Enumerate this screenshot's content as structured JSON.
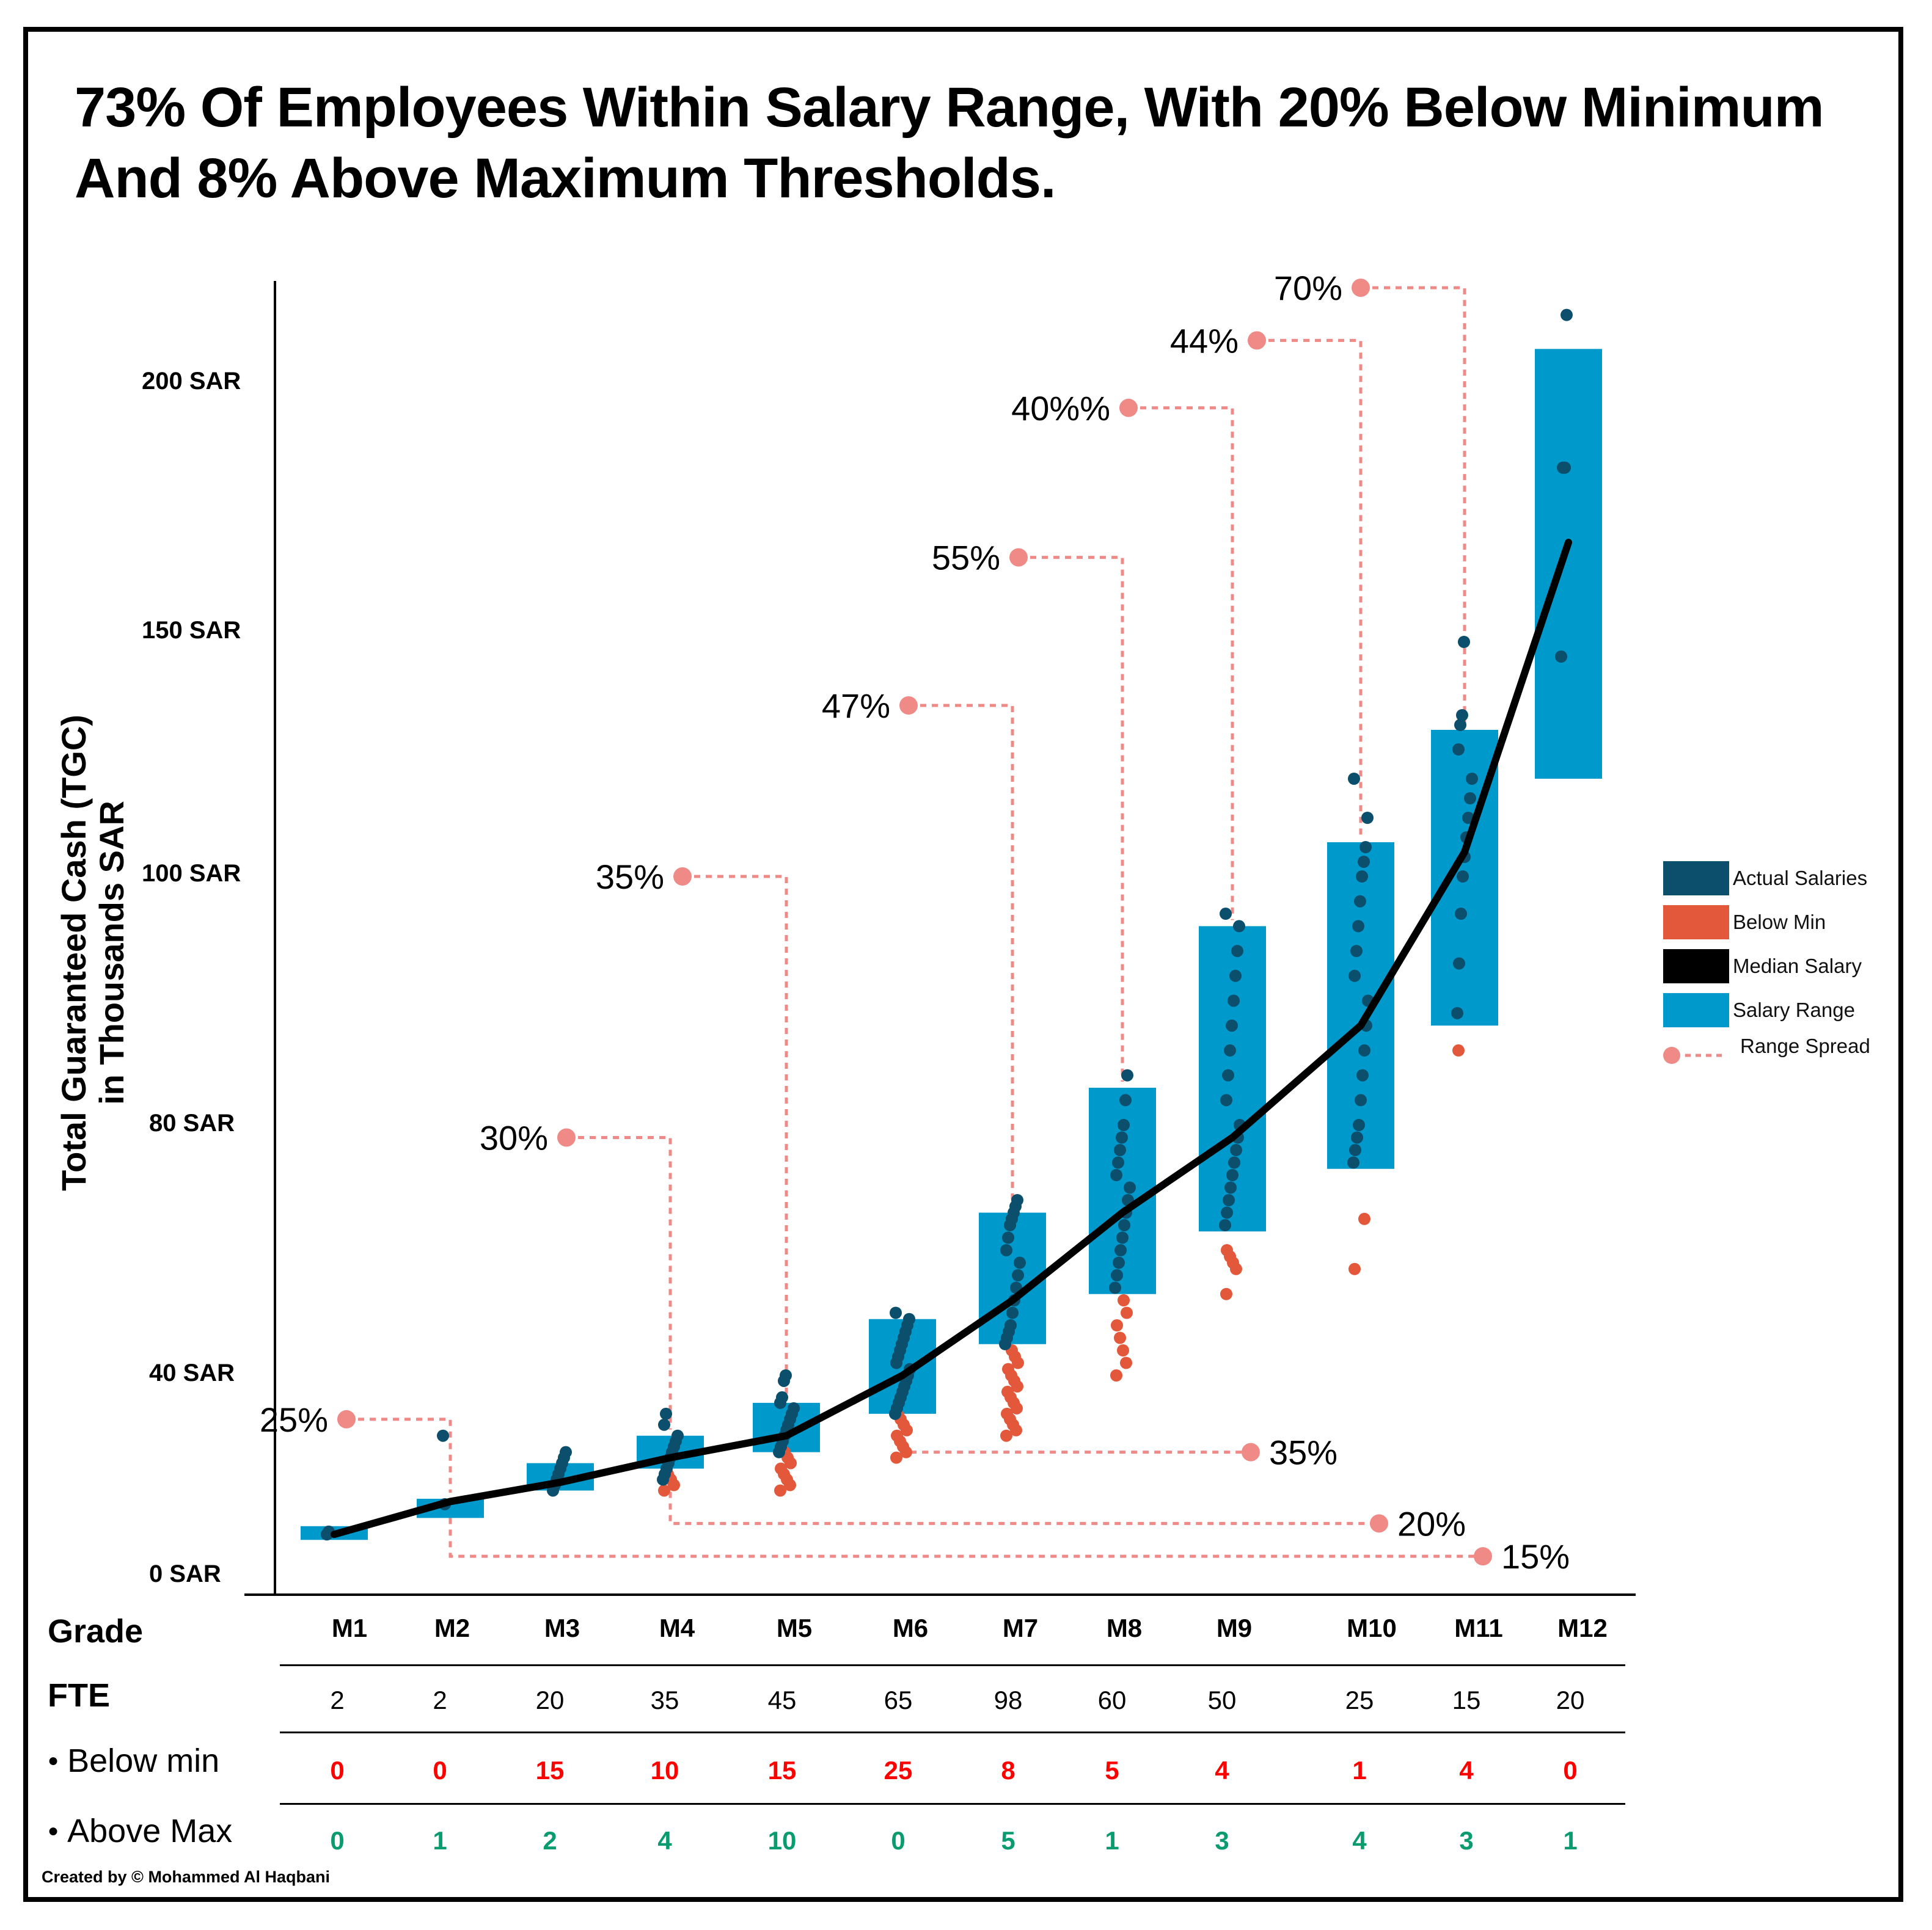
{
  "title": "73% Of Employees Within Salary Range, With 20% Below Minimum And 8% Above Maximum Thresholds.",
  "credit": "Created by © Mohammed Al Haqbani",
  "colors": {
    "actual": "#0b4f6c",
    "below": "#e3573a",
    "median": "#000000",
    "range": "#0099cc",
    "spread": "#f08a87"
  },
  "chart_data": {
    "type": "box-range",
    "title": "73% Of Employees Within Salary Range, With 20% Below Minimum And 8% Above Maximum Thresholds.",
    "ylabel": [
      "Total Guaranteed Cash (TGC)",
      "in Thousands SAR"
    ],
    "y_ticks": [
      {
        "value": 0,
        "label": "0 SAR"
      },
      {
        "value": 40,
        "label": "40 SAR"
      },
      {
        "value": 80,
        "label": "80 SAR"
      },
      {
        "value": 100,
        "label": "100 SAR"
      },
      {
        "value": 150,
        "label": "150 SAR"
      },
      {
        "value": 200,
        "label": "200 SAR"
      }
    ],
    "legend": [
      "Actual Salaries",
      "Below Min",
      "Median Salary",
      "Salary Range",
      "Range Spread"
    ],
    "grades": [
      "M1",
      "M2",
      "M3",
      "M4",
      "M5",
      "M6",
      "M7",
      "M8",
      "M9",
      "M10",
      "M11",
      "M12"
    ],
    "range_min": [
      10,
      14,
      19,
      23,
      26,
      33,
      45,
      53,
      63,
      73,
      88,
      120
    ],
    "range_max": [
      12.5,
      17.5,
      24,
      29,
      35,
      49,
      66,
      83,
      96,
      107,
      130,
      220
    ],
    "median": [
      11,
      17,
      20.5,
      25,
      29,
      40,
      52,
      66,
      78,
      88,
      105,
      168
    ],
    "range_spread": [
      {
        "grade": "M2",
        "label": "25%",
        "value": 32
      },
      {
        "grade": "M4",
        "label": "30%",
        "value": 78
      },
      {
        "grade": "M5",
        "label": "35%",
        "value": 100
      },
      {
        "grade": "M7",
        "label": "47%",
        "value": 135
      },
      {
        "grade": "M8",
        "label": "55%",
        "value": 165
      },
      {
        "grade": "M9",
        "label": "40%%",
        "value": 195
      },
      {
        "grade": "M10",
        "label": "44%",
        "value": 225
      },
      {
        "grade": "M11",
        "label": "70%",
        "value": 256
      },
      {
        "grade": "M6",
        "label": "35%",
        "value": 26,
        "side": "right",
        "end_grade": "M9"
      },
      {
        "grade": "M4",
        "label": "20%",
        "value": 13,
        "side": "right",
        "end_grade": "M10"
      },
      {
        "grade": "M2",
        "label": "15%",
        "value": 7,
        "side": "right",
        "end_grade": "M11"
      }
    ],
    "actual_salaries": [
      [
        11,
        11.5
      ],
      [
        29,
        16.5
      ],
      [
        19,
        20,
        21,
        22,
        23,
        24,
        25,
        26
      ],
      [
        21,
        22,
        23,
        24,
        25,
        26,
        27,
        28,
        29,
        31,
        33
      ],
      [
        26,
        27,
        28,
        29,
        30,
        31,
        32,
        33,
        34,
        35,
        36,
        39,
        40
      ],
      [
        33,
        34,
        35,
        36,
        37,
        38,
        39,
        40,
        41,
        42,
        43,
        44,
        45,
        46,
        47,
        48,
        49,
        50
      ],
      [
        45,
        46,
        47,
        48,
        50,
        52,
        54,
        56,
        58,
        60,
        62,
        64,
        65,
        66,
        67,
        68
      ],
      [
        54,
        56,
        58,
        60,
        62,
        64,
        66,
        68,
        70,
        72,
        74,
        76,
        78,
        80,
        82,
        84
      ],
      [
        64,
        66,
        68,
        70,
        72,
        74,
        76,
        78,
        80,
        82,
        84,
        86,
        88,
        90,
        92,
        94,
        96,
        97
      ],
      [
        74,
        76,
        78,
        80,
        82,
        84,
        86,
        88,
        90,
        92,
        94,
        96,
        98,
        100,
        103,
        106,
        112,
        120
      ],
      [
        89,
        93,
        97,
        100,
        104,
        108,
        112,
        116,
        120,
        126,
        131,
        133,
        148
      ],
      [
        145,
        183,
        183,
        240
      ]
    ],
    "below_min": [
      [],
      [],
      [],
      [
        19,
        20,
        21,
        22
      ],
      [
        19,
        20,
        21,
        22,
        23,
        24,
        25,
        26
      ],
      [
        25,
        26,
        27,
        28,
        29,
        30,
        31,
        32,
        33
      ],
      [
        29,
        30,
        31,
        32,
        33,
        34,
        35,
        36,
        37,
        38,
        39,
        40,
        41,
        42,
        43,
        44
      ],
      [
        40,
        42,
        44,
        46,
        48,
        50,
        52
      ],
      [
        53,
        57,
        58,
        59,
        60
      ],
      [
        57,
        65
      ],
      [
        86
      ],
      []
    ],
    "table": {
      "labels": {
        "grade": "Grade",
        "fte": "FTE",
        "below": "Below min",
        "above": "Above Max"
      },
      "fte": [
        2,
        2,
        20,
        35,
        45,
        65,
        98,
        60,
        50,
        25,
        15,
        20
      ],
      "below_min": [
        0,
        0,
        15,
        10,
        15,
        25,
        8,
        5,
        4,
        1,
        4,
        0
      ],
      "above_max": [
        0,
        1,
        2,
        4,
        10,
        0,
        5,
        1,
        3,
        4,
        3,
        1
      ]
    }
  }
}
